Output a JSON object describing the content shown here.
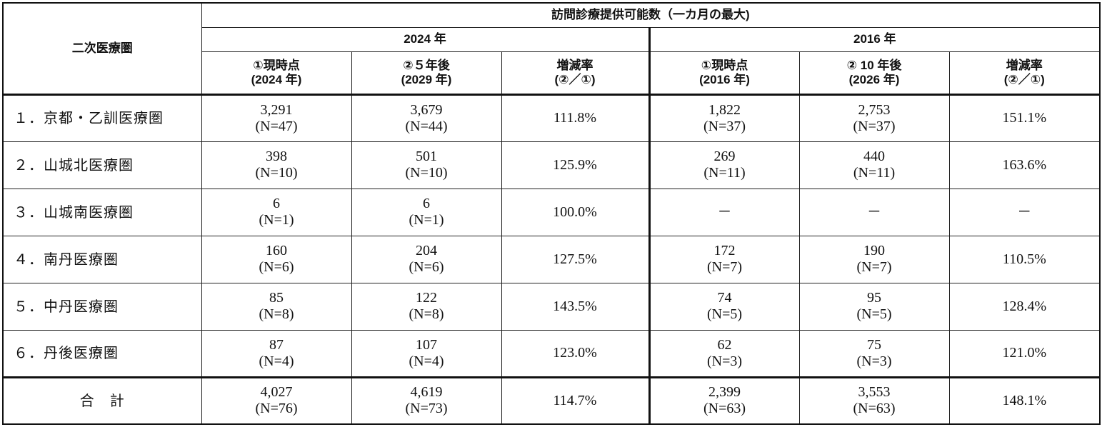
{
  "header": {
    "region_col": "二次医療圏",
    "main_title": "訪問診療提供可能数（一カ月の最大)",
    "group_2024": "2024 年",
    "group_2016": "2016 年",
    "col_2024_current_l1": "①現時点",
    "col_2024_current_l2": "(2024 年)",
    "col_2024_future_l1": "②５年後",
    "col_2024_future_l2": "(2029 年)",
    "col_2024_rate_l1": "増減率",
    "col_2024_rate_l2": "(②／①)",
    "col_2016_current_l1": "①現時点",
    "col_2016_current_l2": "(2016 年)",
    "col_2016_future_l1": "② 10 年後",
    "col_2016_future_l2": "(2026 年)",
    "col_2016_rate_l1": "増減率",
    "col_2016_rate_l2": "(②／①)"
  },
  "rows": [
    {
      "region": "１．京都・乙訓医療圏",
      "c24_val": "3,291",
      "c24_n": "(N=47)",
      "f24_val": "3,679",
      "f24_n": "(N=44)",
      "r24": "111.8%",
      "c16_val": "1,822",
      "c16_n": "(N=37)",
      "f16_val": "2,753",
      "f16_n": "(N=37)",
      "r16": "151.1%"
    },
    {
      "region": "２．山城北医療圏",
      "c24_val": "398",
      "c24_n": "(N=10)",
      "f24_val": "501",
      "f24_n": "(N=10)",
      "r24": "125.9%",
      "c16_val": "269",
      "c16_n": "(N=11)",
      "f16_val": "440",
      "f16_n": "(N=11)",
      "r16": "163.6%"
    },
    {
      "region": "３．山城南医療圏",
      "c24_val": "6",
      "c24_n": "(N=1)",
      "f24_val": "6",
      "f24_n": "(N=1)",
      "r24": "100.0%",
      "c16_val": "－",
      "c16_n": "",
      "f16_val": "－",
      "f16_n": "",
      "r16": "－"
    },
    {
      "region": "４．南丹医療圏",
      "c24_val": "160",
      "c24_n": "(N=6)",
      "f24_val": "204",
      "f24_n": "(N=6)",
      "r24": "127.5%",
      "c16_val": "172",
      "c16_n": "(N=7)",
      "f16_val": "190",
      "f16_n": "(N=7)",
      "r16": "110.5%"
    },
    {
      "region": "５．中丹医療圏",
      "c24_val": "85",
      "c24_n": "(N=8)",
      "f24_val": "122",
      "f24_n": "(N=8)",
      "r24": "143.5%",
      "c16_val": "74",
      "c16_n": "(N=5)",
      "f16_val": "95",
      "f16_n": "(N=5)",
      "r16": "128.4%"
    },
    {
      "region": "６．丹後医療圏",
      "c24_val": "87",
      "c24_n": "(N=4)",
      "f24_val": "107",
      "f24_n": "(N=4)",
      "r24": "123.0%",
      "c16_val": "62",
      "c16_n": "(N=3)",
      "f16_val": "75",
      "f16_n": "(N=3)",
      "r16": "121.0%"
    },
    {
      "region": "合　計",
      "c24_val": "4,027",
      "c24_n": "(N=76)",
      "f24_val": "4,619",
      "f24_n": "(N=73)",
      "r24": "114.7%",
      "c16_val": "2,399",
      "c16_n": "(N=63)",
      "f16_val": "3,553",
      "f16_n": "(N=63)",
      "r16": "148.1%"
    }
  ]
}
